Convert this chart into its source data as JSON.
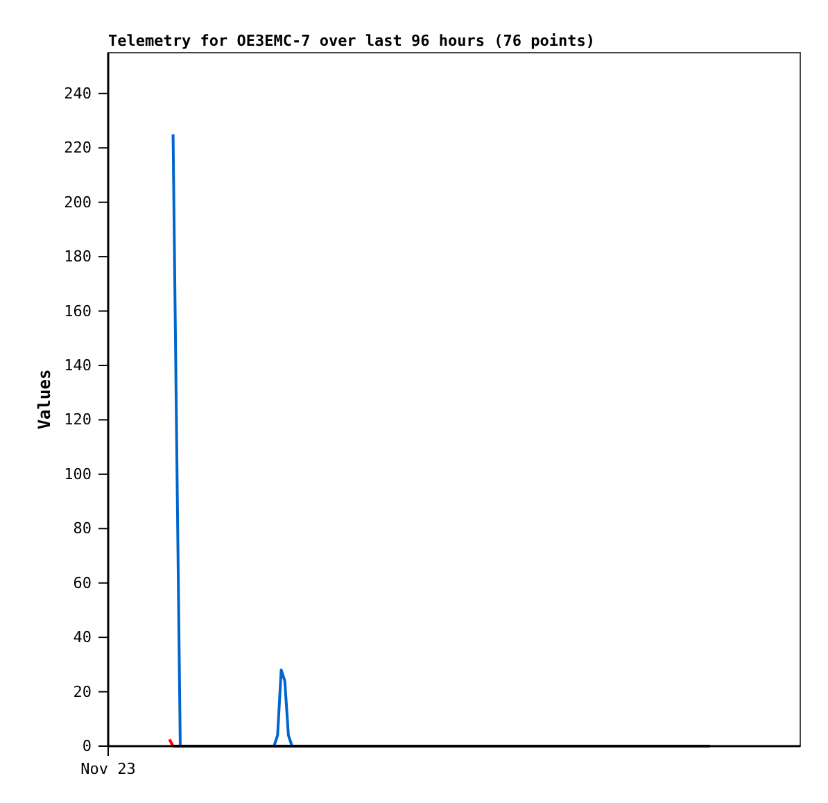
{
  "chart_data": {
    "type": "line",
    "title": "Telemetry for OE3EMC-7 over last 96 hours (76 points)",
    "ylabel": "Values",
    "ylim": [
      0,
      255
    ],
    "yticks": [
      0,
      20,
      40,
      60,
      80,
      100,
      120,
      140,
      160,
      180,
      200,
      220,
      240
    ],
    "grid": false,
    "categories": [
      "Nov 23",
      null,
      null,
      null,
      null,
      null,
      null,
      null,
      null,
      null,
      null,
      null,
      null,
      null,
      null,
      null,
      null,
      null,
      null,
      null,
      null,
      null,
      null,
      null,
      null,
      null,
      null,
      null,
      null,
      null,
      null,
      null,
      null,
      null,
      null,
      null,
      null,
      null,
      null,
      null,
      null,
      null,
      null,
      null,
      null,
      null,
      null,
      null,
      null,
      null,
      null,
      null,
      null,
      null,
      null,
      null,
      null,
      null,
      null,
      null,
      null,
      null,
      null,
      null,
      null,
      null,
      null,
      null,
      null,
      null,
      null,
      null,
      null,
      null,
      null,
      null,
      null,
      null,
      null,
      null,
      null,
      null,
      null,
      null,
      null,
      null,
      null,
      null,
      null,
      null,
      null,
      null,
      null,
      null,
      null,
      null,
      null,
      null,
      null,
      null,
      null,
      null,
      null,
      null,
      null,
      null,
      null,
      null,
      null,
      null,
      null,
      null,
      null,
      null,
      null,
      null,
      null,
      null,
      null,
      null,
      null,
      null,
      null,
      null,
      null,
      null,
      null,
      null,
      null,
      null,
      null,
      null,
      null,
      null,
      null,
      null,
      null,
      null,
      null,
      null,
      null,
      null,
      null,
      null,
      null,
      null,
      null,
      null,
      null,
      null,
      null,
      null,
      null,
      null,
      null,
      null,
      null,
      null,
      null,
      null,
      null,
      null,
      null,
      null,
      null,
      null,
      null,
      null,
      null,
      null,
      null,
      null,
      null,
      null,
      null,
      null,
      null,
      null,
      null,
      null,
      null,
      null,
      null,
      null,
      null,
      null,
      null,
      null,
      null,
      null,
      null,
      null,
      null
    ],
    "series": [
      {
        "color": "#000000",
        "values": [
          null,
          null,
          null,
          null,
          null,
          null,
          null,
          null,
          null,
          null,
          null,
          null,
          null,
          null,
          null,
          null,
          null,
          null,
          0,
          0,
          0,
          0,
          0,
          0,
          0,
          0,
          0,
          0,
          0,
          0,
          0,
          0,
          0,
          0,
          0,
          0,
          0,
          0,
          0,
          0,
          0,
          0,
          0,
          0,
          0,
          0,
          0,
          0,
          0,
          0,
          0,
          0,
          0,
          0,
          0,
          0,
          0,
          0,
          0,
          0,
          0,
          0,
          0,
          0,
          0,
          0,
          0,
          0,
          0,
          0,
          0,
          0,
          0,
          0,
          0,
          0,
          0,
          0,
          0,
          0,
          0,
          0,
          0,
          0,
          0,
          0,
          0,
          0,
          0,
          0,
          0,
          0,
          0,
          0,
          0,
          0,
          0,
          0,
          0,
          0,
          0,
          0,
          0,
          0,
          0,
          0,
          0,
          0,
          0,
          0,
          0,
          0,
          0,
          0,
          0,
          0,
          0,
          0,
          0,
          0,
          0,
          0,
          0,
          0,
          0,
          0,
          0,
          0,
          0,
          0,
          0,
          0,
          0,
          0,
          0,
          0,
          0,
          0,
          0,
          0,
          0,
          0,
          0,
          0,
          0,
          0,
          0,
          0,
          0,
          0,
          0,
          0,
          0,
          0,
          0,
          0,
          0,
          0,
          0,
          0,
          0,
          0,
          0,
          0,
          0,
          0,
          0,
          0,
          null,
          null,
          null,
          null,
          null,
          null,
          null,
          null,
          null,
          null,
          null,
          null,
          null,
          null,
          null,
          null,
          null,
          null,
          null,
          null,
          null,
          null,
          null,
          null,
          null
        ]
      },
      {
        "color": "#ff0000",
        "values": [
          null,
          null,
          null,
          null,
          null,
          null,
          null,
          null,
          null,
          null,
          null,
          null,
          null,
          null,
          null,
          null,
          null,
          2.5,
          0,
          null,
          null,
          null,
          null,
          null,
          null,
          null,
          null,
          null,
          null,
          null,
          null,
          null,
          null,
          null,
          null,
          null,
          null,
          null,
          null,
          null,
          null,
          null,
          null,
          null,
          null,
          null,
          null,
          null,
          null,
          null,
          null,
          null,
          null,
          null,
          null,
          null,
          null,
          null,
          null,
          null,
          null,
          null,
          null,
          null,
          null,
          null,
          null,
          null,
          null,
          null,
          null,
          null,
          null,
          null,
          null,
          null,
          null,
          null,
          null,
          null,
          null,
          null,
          null,
          null,
          null,
          null,
          null,
          null,
          null,
          null,
          null,
          null,
          null,
          null,
          null,
          null,
          null,
          null,
          null,
          null,
          null,
          null,
          null,
          null,
          null,
          null,
          null,
          null,
          null,
          null,
          null,
          null,
          null,
          null,
          null,
          null,
          null,
          null,
          null,
          null,
          null,
          null,
          null,
          null,
          null,
          null,
          null,
          null,
          null,
          null,
          null,
          null,
          null,
          null,
          null,
          null,
          null,
          null,
          null,
          null,
          null,
          null,
          null,
          null,
          null,
          null,
          null,
          null,
          null,
          null,
          null,
          null,
          null,
          null,
          null,
          null,
          null,
          null,
          null,
          null,
          null,
          null,
          null,
          null,
          null,
          null,
          null,
          null,
          null,
          null,
          null,
          null,
          null,
          null,
          null,
          null,
          null,
          null,
          null,
          null,
          null,
          null,
          null,
          null,
          null,
          null,
          null,
          null,
          null,
          null,
          null,
          null,
          null
        ]
      },
      {
        "color": "#0066cc",
        "values": [
          null,
          null,
          null,
          null,
          null,
          null,
          null,
          null,
          null,
          null,
          null,
          null,
          null,
          null,
          null,
          null,
          null,
          null,
          225,
          112,
          0,
          null,
          null,
          null,
          null,
          null,
          null,
          null,
          null,
          null,
          null,
          null,
          null,
          null,
          null,
          null,
          null,
          null,
          null,
          null,
          null,
          null,
          null,
          null,
          null,
          null,
          0,
          4,
          28,
          24,
          4,
          0,
          null,
          null,
          null,
          null,
          null,
          null,
          null,
          null,
          null,
          null,
          null,
          null,
          null,
          null,
          null,
          null,
          null,
          null,
          null,
          null,
          null,
          null,
          null,
          null,
          null,
          null,
          null,
          null,
          null,
          null,
          null,
          null,
          null,
          null,
          null,
          null,
          null,
          null,
          null,
          null,
          null,
          null,
          null,
          null,
          null,
          null,
          null,
          null,
          null,
          null,
          null,
          null,
          null,
          null,
          null,
          null,
          null,
          null,
          null,
          null,
          null,
          null,
          null,
          null,
          null,
          null,
          null,
          null,
          null,
          null,
          null,
          null,
          null,
          null,
          null,
          null,
          null,
          null,
          null,
          null,
          null,
          null,
          null,
          null,
          null,
          null,
          null,
          null,
          null,
          null,
          null,
          null,
          null,
          null,
          null,
          null,
          null,
          null,
          null,
          null,
          null,
          null,
          null,
          null,
          null,
          null,
          null,
          null,
          null,
          null,
          null,
          null,
          null,
          null,
          null,
          null,
          null,
          null,
          null,
          null,
          null,
          null,
          null,
          null,
          null,
          null,
          null,
          null,
          null,
          null,
          null,
          null,
          null,
          null,
          null,
          null,
          null,
          null,
          null,
          null,
          null
        ]
      }
    ]
  }
}
